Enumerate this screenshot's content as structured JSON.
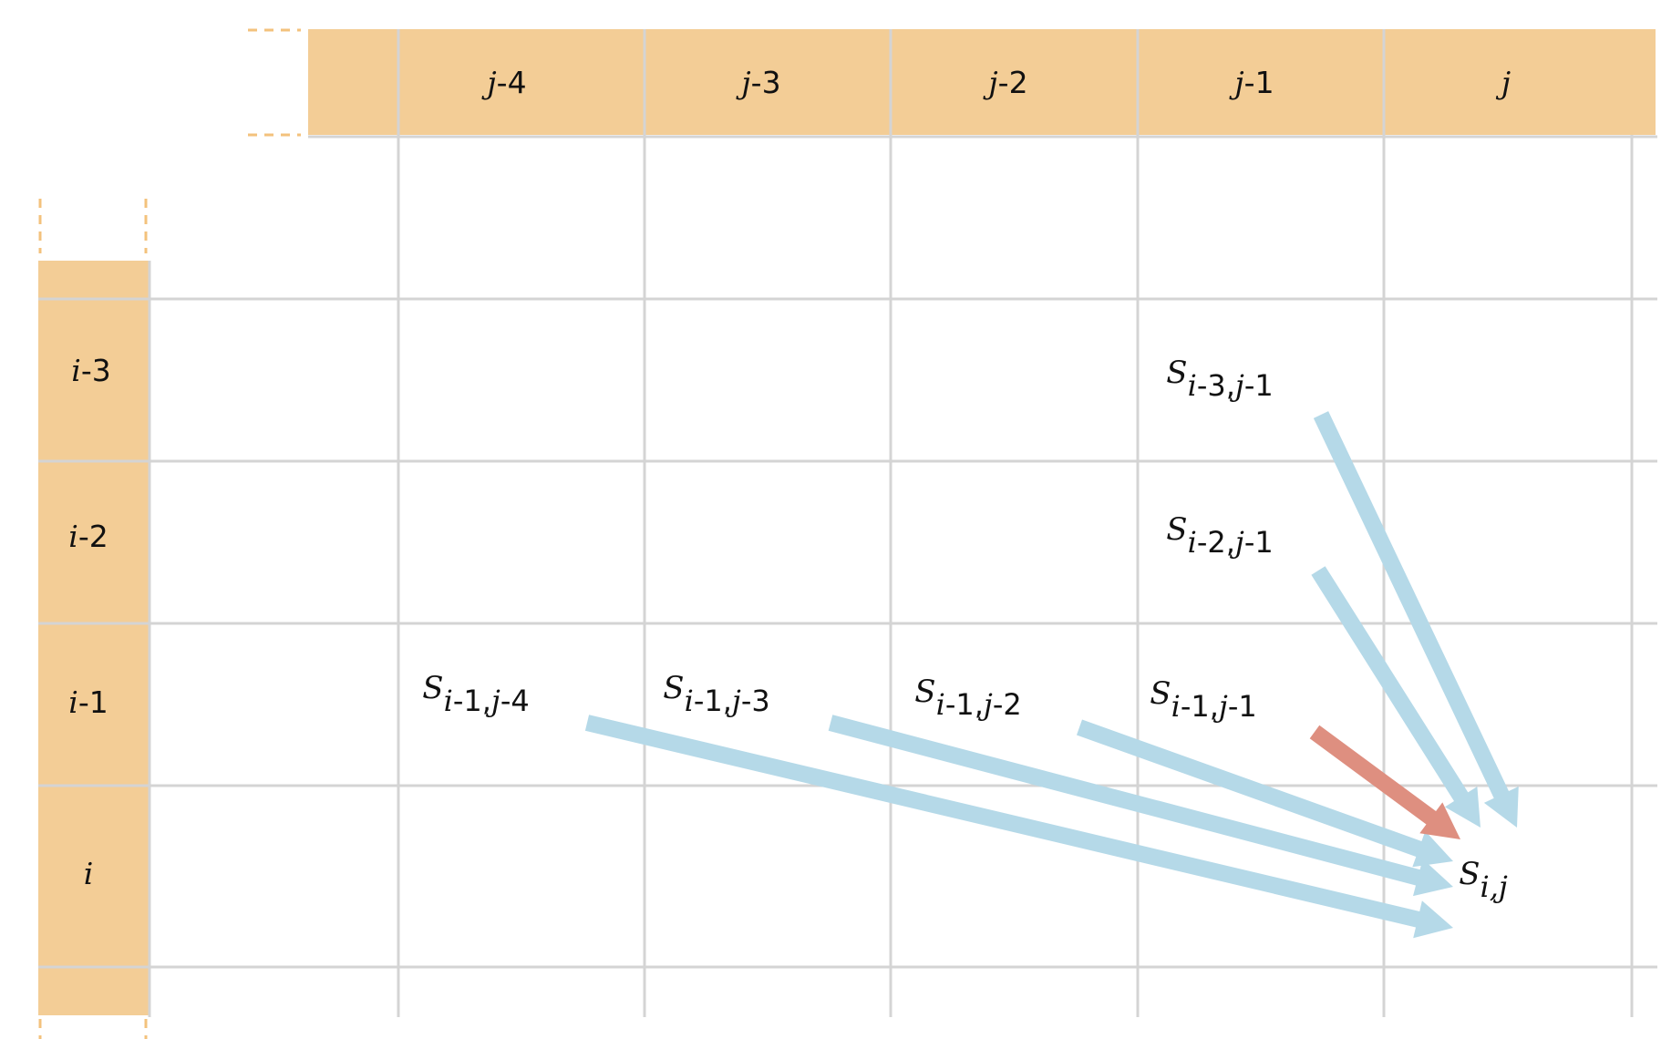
{
  "colors": {
    "header_fill": "#f3cd96",
    "header_dash": "#f3c27c",
    "grid": "#d4d4d4",
    "arrow_blue": "#b5d9e8",
    "arrow_red": "#de8f80",
    "text": "#111111"
  },
  "column_headers": [
    {
      "base": "j",
      "suffix": "-4"
    },
    {
      "base": "j",
      "suffix": "-3"
    },
    {
      "base": "j",
      "suffix": "-2"
    },
    {
      "base": "j",
      "suffix": "-1"
    },
    {
      "base": "j",
      "suffix": ""
    }
  ],
  "row_headers": [
    {
      "base": "i",
      "suffix": "-3"
    },
    {
      "base": "i",
      "suffix": "-2"
    },
    {
      "base": "i",
      "suffix": "-1"
    },
    {
      "base": "i",
      "suffix": ""
    }
  ],
  "cell_labels": [
    {
      "id": "s-i3-j1",
      "parts": [
        [
          "i",
          true
        ],
        [
          "-3,",
          false
        ],
        [
          "j",
          true
        ],
        [
          "-1",
          false
        ]
      ]
    },
    {
      "id": "s-i2-j1",
      "parts": [
        [
          "i",
          true
        ],
        [
          "-2,",
          false
        ],
        [
          "j",
          true
        ],
        [
          "-1",
          false
        ]
      ]
    },
    {
      "id": "s-i1-j4",
      "parts": [
        [
          "i",
          true
        ],
        [
          "-1,",
          false
        ],
        [
          "j",
          true
        ],
        [
          "-4",
          false
        ]
      ]
    },
    {
      "id": "s-i1-j3",
      "parts": [
        [
          "i",
          true
        ],
        [
          "-1,",
          false
        ],
        [
          "j",
          true
        ],
        [
          "-3",
          false
        ]
      ]
    },
    {
      "id": "s-i1-j2",
      "parts": [
        [
          "i",
          true
        ],
        [
          "-1,",
          false
        ],
        [
          "j",
          true
        ],
        [
          "-2",
          false
        ]
      ]
    },
    {
      "id": "s-i1-j1",
      "parts": [
        [
          "i",
          true
        ],
        [
          "-1,",
          false
        ],
        [
          "j",
          true
        ],
        [
          "-1",
          false
        ]
      ]
    },
    {
      "id": "s-i-j",
      "parts": [
        [
          "i,",
          true
        ],
        [
          "j",
          true
        ]
      ]
    }
  ],
  "cell_symbol": "S",
  "arrows": [
    {
      "from": "s-i3-j1",
      "to": "s-i-j",
      "color": "blue"
    },
    {
      "from": "s-i2-j1",
      "to": "s-i-j",
      "color": "blue"
    },
    {
      "from": "s-i1-j4",
      "to": "s-i-j",
      "color": "blue"
    },
    {
      "from": "s-i1-j3",
      "to": "s-i-j",
      "color": "blue"
    },
    {
      "from": "s-i1-j2",
      "to": "s-i-j",
      "color": "blue"
    },
    {
      "from": "s-i1-j1",
      "to": "s-i-j",
      "color": "red"
    }
  ]
}
